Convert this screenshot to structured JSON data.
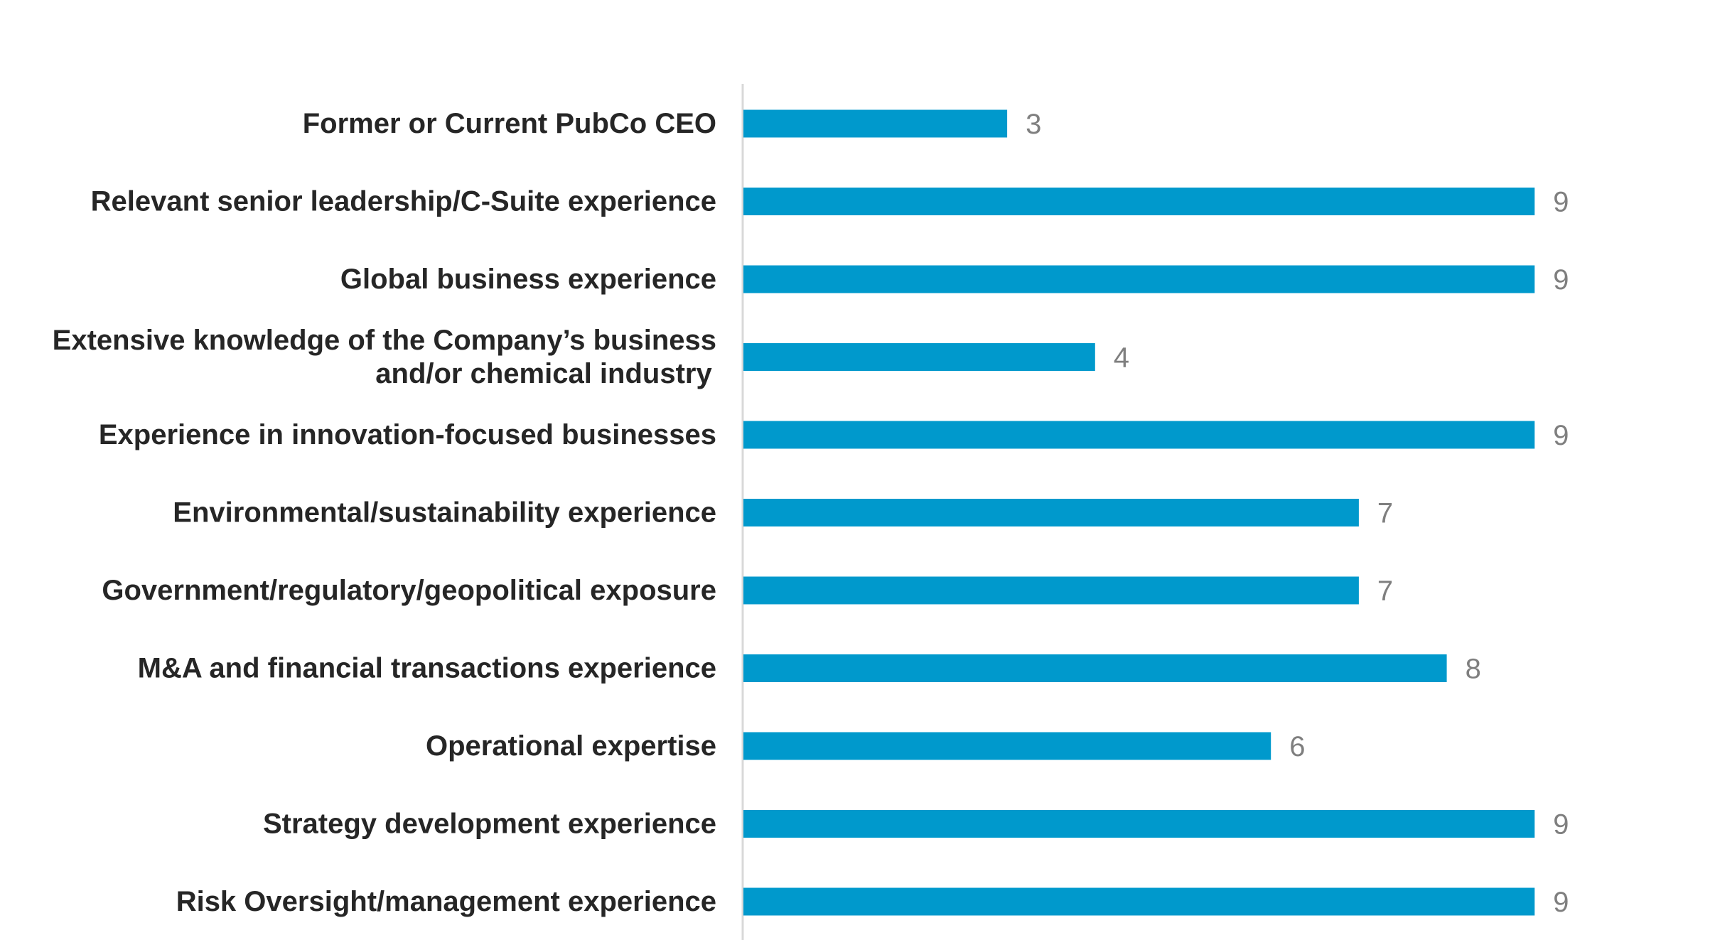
{
  "chart_data": {
    "type": "bar",
    "orientation": "horizontal",
    "title": "",
    "xlabel": "",
    "ylabel": "",
    "grid": false,
    "legend": "none",
    "xlim": [
      0,
      9
    ],
    "bar_color": "#0099CC",
    "categories": [
      [
        "Former or Current PubCo CEO"
      ],
      [
        "Relevant senior leadership/C-Suite experience"
      ],
      [
        "Global business experience"
      ],
      [
        "Extensive knowledge of the Company’s business",
        "and/or chemical industry"
      ],
      [
        "Experience in innovation-focused businesses"
      ],
      [
        "Environmental/sustainability experience"
      ],
      [
        "Government/regulatory/geopolitical exposure"
      ],
      [
        "M&A and financial transactions experience"
      ],
      [
        "Operational expertise"
      ],
      [
        "Strategy development experience"
      ],
      [
        "Risk Oversight/management experience"
      ]
    ],
    "values": [
      3,
      9,
      9,
      4,
      9,
      7,
      7,
      8,
      6,
      9,
      9
    ]
  }
}
